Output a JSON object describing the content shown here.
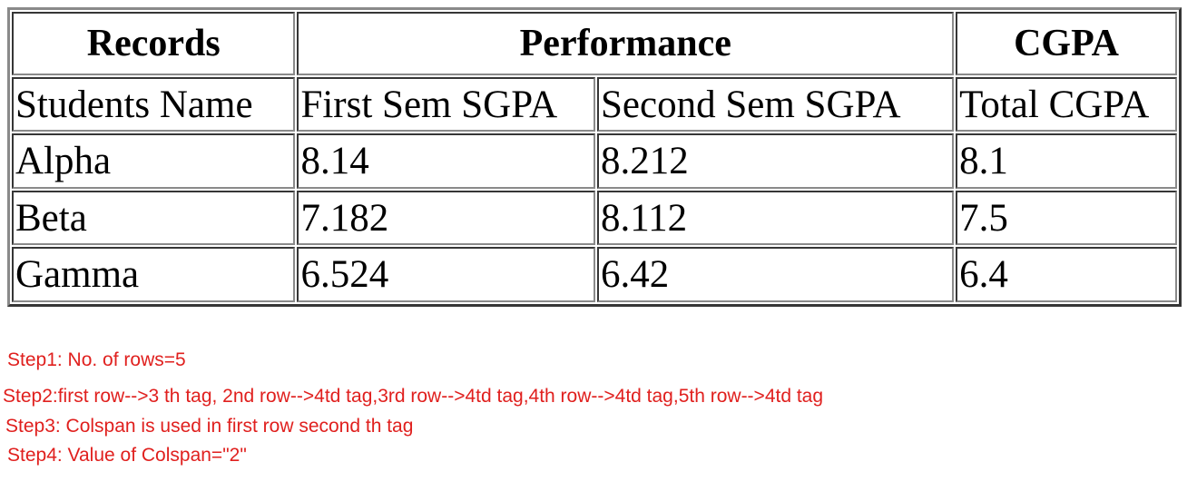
{
  "table": {
    "header": {
      "records": "Records",
      "performance": "Performance",
      "cgpa": "CGPA"
    },
    "subheader": [
      "Students Name",
      "First Sem SGPA",
      "Second Sem SGPA",
      "Total CGPA"
    ],
    "rows": [
      [
        "Alpha",
        "8.14",
        "8.212",
        "8.1"
      ],
      [
        "Beta",
        "7.182",
        "8.112",
        "7.5"
      ],
      [
        "Gamma",
        "6.524",
        "6.42",
        "6.4"
      ]
    ]
  },
  "notes": {
    "step1": "Step1: No. of rows=5",
    "step2": "Step2:first row-->3 th tag, 2nd row-->4td tag,3rd row-->4td tag,4th row-->4td tag,5th row-->4td tag",
    "step3": "Step3: Colspan is used in first row second th tag",
    "step4": "Step4: Value of Colspan=\"2\""
  },
  "colors": {
    "note_text": "#e0201e",
    "border": "#8a8a8a"
  }
}
